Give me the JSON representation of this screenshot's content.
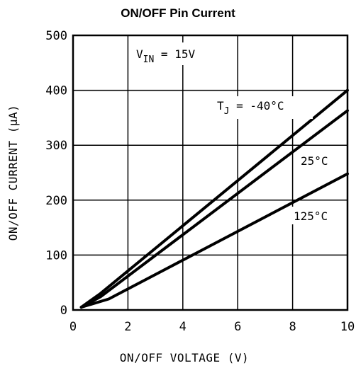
{
  "chart_data": {
    "type": "line",
    "title": "ON/OFF Pin Current",
    "xlabel": "ON/OFF VOLTAGE (V)",
    "ylabel": "ON/OFF CURRENT (μA)",
    "xlim": [
      0,
      10
    ],
    "ylim": [
      0,
      500
    ],
    "xticks": [
      "0",
      "2",
      "4",
      "6",
      "8",
      "10"
    ],
    "yticks": [
      "0",
      "100",
      "200",
      "300",
      "400",
      "500"
    ],
    "grid": true,
    "series": [
      {
        "name": "TJ = -40°C",
        "x": [
          0.3,
          1.0,
          10.0
        ],
        "y": [
          5,
          30,
          400
        ]
      },
      {
        "name": "25°C",
        "x": [
          0.3,
          1.0,
          10.0
        ],
        "y": [
          5,
          24,
          363
        ]
      },
      {
        "name": "125°C",
        "x": [
          0.3,
          1.3,
          10.0
        ],
        "y": [
          5,
          20,
          248
        ]
      }
    ],
    "annotations": {
      "vin": {
        "prefix": "V",
        "sub": "IN",
        "suffix": " = 15V"
      },
      "t_minus40": {
        "prefix": "T",
        "sub": "J",
        "suffix": " = -40°C"
      },
      "t_25": "25°C",
      "t_125": "125°C"
    }
  }
}
